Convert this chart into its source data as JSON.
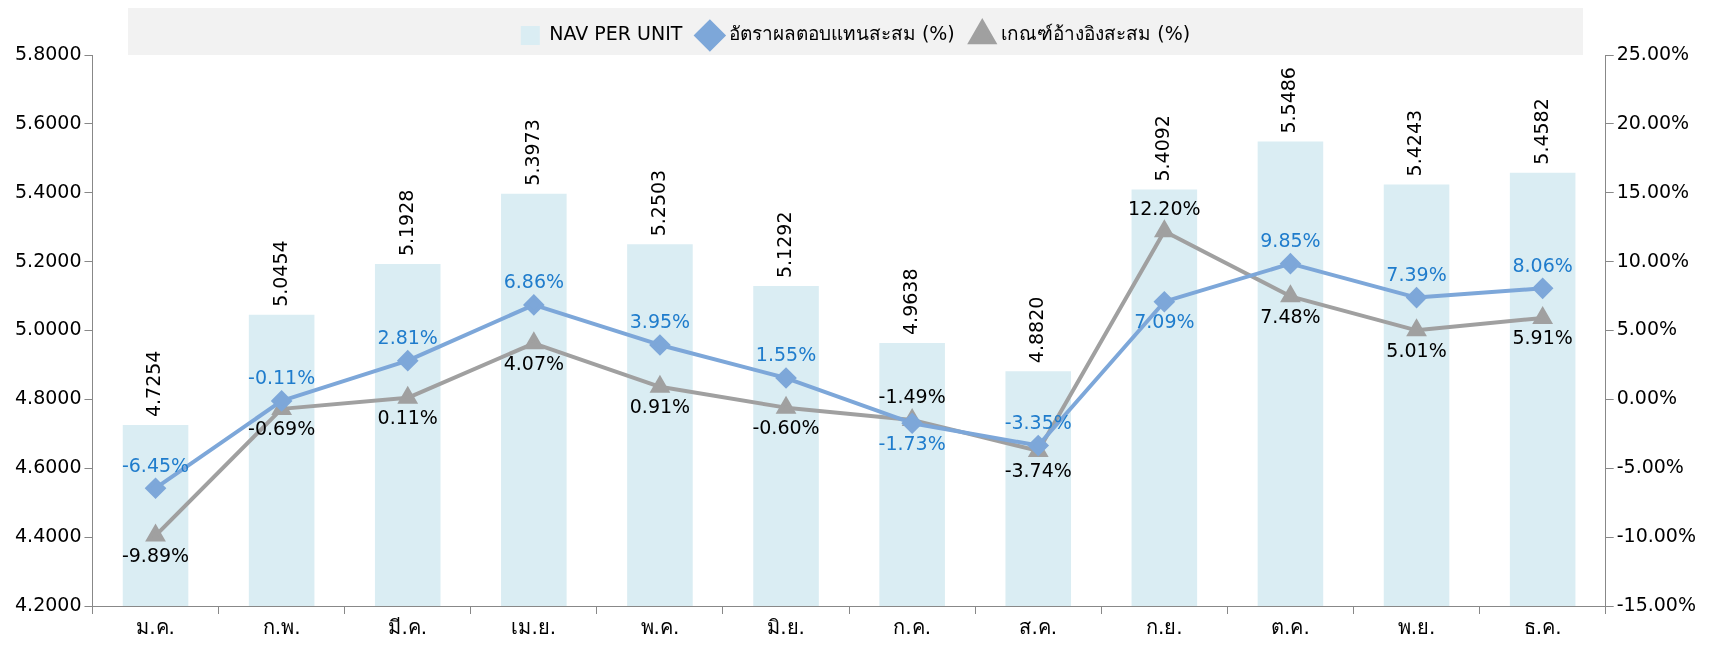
{
  "chart_data": {
    "type": "bar",
    "categories": [
      "ม.ค.",
      "ก.พ.",
      "มี.ค.",
      "เม.ย.",
      "พ.ค.",
      "มิ.ย.",
      "ก.ค.",
      "ส.ค.",
      "ก.ย.",
      "ต.ค.",
      "พ.ย.",
      "ธ.ค."
    ],
    "series": [
      {
        "name": "NAV PER UNIT",
        "color": "#daedf3",
        "values": [
          4.7254,
          5.0454,
          5.1928,
          5.3973,
          5.2503,
          5.1292,
          4.9638,
          4.882,
          5.4092,
          5.5486,
          5.4243,
          5.4582
        ],
        "value_labels": [
          "4.7254",
          "5.0454",
          "5.1928",
          "5.3973",
          "5.2503",
          "5.1292",
          "4.9638",
          "4.8820",
          "5.4092",
          "5.5486",
          "5.4243",
          "5.4582"
        ]
      },
      {
        "name": "อัตราผลตอบแทนสะสม (%)",
        "type": "line",
        "axis": "y2",
        "marker": "diamond",
        "color": "#7da7d9",
        "values": [
          -6.45,
          -0.11,
          2.81,
          6.86,
          3.95,
          1.55,
          -1.73,
          -3.35,
          7.09,
          9.85,
          7.39,
          8.06
        ],
        "value_labels": [
          "-6.45%",
          "-0.11%",
          "2.81%",
          "6.86%",
          "3.95%",
          "1.55%",
          "-1.73%",
          "-3.35%",
          "7.09%",
          "9.85%",
          "7.39%",
          "8.06%"
        ]
      },
      {
        "name": "เกณฑ์อ้างอิงสะสม (%)",
        "type": "line",
        "axis": "y2",
        "marker": "triangle",
        "color": "#a0a0a0",
        "values": [
          -9.89,
          -0.69,
          0.11,
          4.07,
          0.91,
          -0.6,
          -1.49,
          -3.74,
          12.2,
          7.48,
          5.01,
          5.91
        ],
        "value_labels": [
          "-9.89%",
          "-0.69%",
          "0.11%",
          "4.07%",
          "0.91%",
          "-0.60%",
          "-1.49%",
          "-3.74%",
          "12.20%",
          "7.48%",
          "5.01%",
          "5.91%"
        ]
      }
    ],
    "ylim": [
      4.2,
      5.8
    ],
    "yticks": [
      {
        "value": 4.2,
        "label": "4.2000"
      },
      {
        "value": 4.4,
        "label": "4.4000"
      },
      {
        "value": 4.6,
        "label": "4.6000"
      },
      {
        "value": 4.8,
        "label": "4.8000"
      },
      {
        "value": 5.0,
        "label": "5.0000"
      },
      {
        "value": 5.2,
        "label": "5.2000"
      },
      {
        "value": 5.4,
        "label": "5.4000"
      },
      {
        "value": 5.6,
        "label": "5.6000"
      },
      {
        "value": 5.8,
        "label": "5.8000"
      }
    ],
    "y2lim": [
      -15,
      25
    ],
    "y2ticks": [
      {
        "value": -15,
        "label": "-15.00%"
      },
      {
        "value": -10,
        "label": "-10.00%"
      },
      {
        "value": -5,
        "label": "-5.00%"
      },
      {
        "value": 0,
        "label": "0.00%"
      },
      {
        "value": 5,
        "label": "5.00%"
      },
      {
        "value": 10,
        "label": "10.00%"
      },
      {
        "value": 15,
        "label": "15.00%"
      },
      {
        "value": 20,
        "label": "20.00%"
      },
      {
        "value": 25,
        "label": "25.00%"
      }
    ],
    "grid": false,
    "legend": "top"
  }
}
